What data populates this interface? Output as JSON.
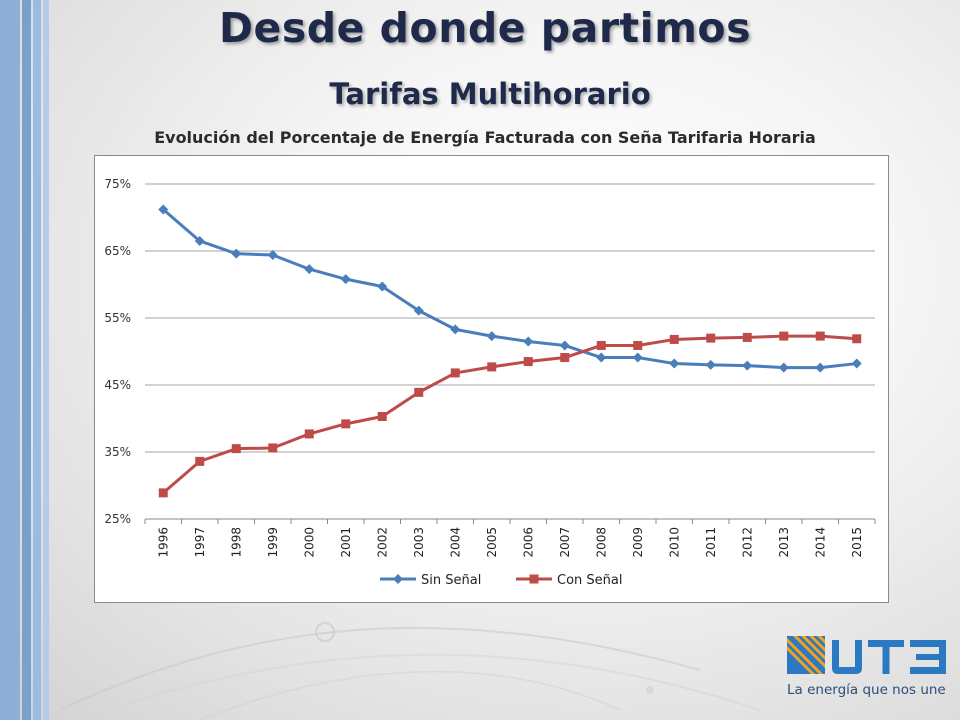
{
  "slide": {
    "title": "Desde donde partimos",
    "subtitle": "Tarifas Multihorario",
    "chart_heading": "Evolución del Porcentaje de Energía Facturada con Seña Tarifaria Horaria"
  },
  "logo": {
    "tagline": "La energía que nos une",
    "colors": {
      "blue": "#2b79c0",
      "orange": "#f2a01e"
    }
  },
  "chart_data": {
    "type": "line",
    "title": "Evolución del Porcentaje de Energía Facturada con Seña Tarifaria Horaria",
    "categories": [
      "1996",
      "1997",
      "1998",
      "1999",
      "2000",
      "2001",
      "2002",
      "2003",
      "2004",
      "2005",
      "2006",
      "2007",
      "2008",
      "2009",
      "2010",
      "2011",
      "2012",
      "2013",
      "2014",
      "2015"
    ],
    "y_ticks": [
      "75%",
      "65%",
      "55%",
      "45%",
      "35%",
      "25%"
    ],
    "ylim": [
      25,
      75
    ],
    "y_unit": "%",
    "grid": true,
    "legend_position": "bottom",
    "series": [
      {
        "name": "Sin Señal",
        "color": "#4a7ebb",
        "marker": "diamond",
        "values": [
          71.2,
          66.5,
          64.6,
          64.4,
          62.3,
          60.8,
          59.7,
          56.1,
          53.3,
          52.3,
          51.5,
          50.9,
          49.1,
          49.1,
          48.2,
          48.0,
          47.9,
          47.6,
          47.6,
          48.2
        ]
      },
      {
        "name": "Con Señal",
        "color": "#be4b48",
        "marker": "square",
        "values": [
          28.9,
          33.6,
          35.5,
          35.6,
          37.7,
          39.2,
          40.3,
          43.9,
          46.8,
          47.7,
          48.5,
          49.1,
          50.9,
          50.9,
          51.8,
          52.0,
          52.1,
          52.3,
          52.3,
          51.9
        ]
      }
    ]
  }
}
